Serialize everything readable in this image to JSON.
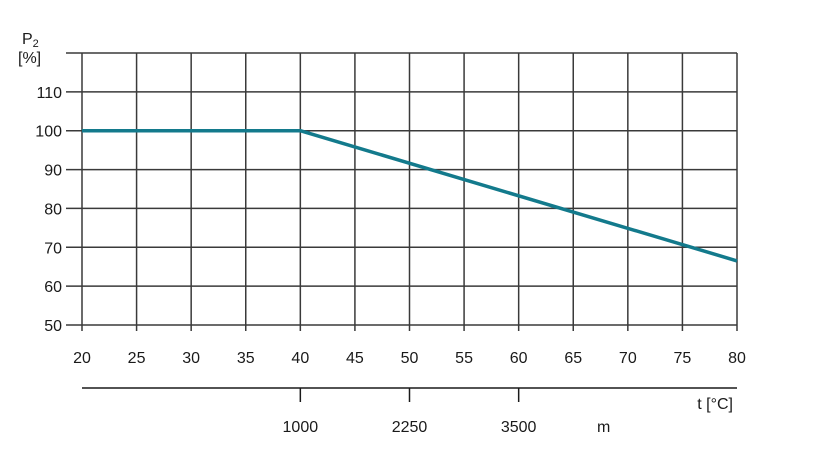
{
  "chart_data": {
    "type": "line",
    "title": "",
    "ylabel_top": "P",
    "ylabel_sub": "2",
    "ylabel_unit": "[%]",
    "xlabel": "t [°C]",
    "xlim": [
      20,
      80
    ],
    "ylim": [
      50,
      120
    ],
    "x_ticks": [
      "20",
      "25",
      "30",
      "35",
      "40",
      "45",
      "50",
      "55",
      "60",
      "65",
      "70",
      "75",
      "80"
    ],
    "y_ticks": [
      "50",
      "60",
      "70",
      "80",
      "90",
      "100",
      "110"
    ],
    "grid": true,
    "line_color": "#137a8c",
    "series": [
      {
        "x": [
          20,
          40,
          80
        ],
        "y": [
          100,
          100,
          66.5
        ]
      }
    ],
    "secondary_axis": {
      "unit": "m",
      "ticks": [
        {
          "label": "1000",
          "x": 40
        },
        {
          "label": "2250",
          "x": 50
        },
        {
          "label": "3500",
          "x": 60
        }
      ]
    }
  }
}
